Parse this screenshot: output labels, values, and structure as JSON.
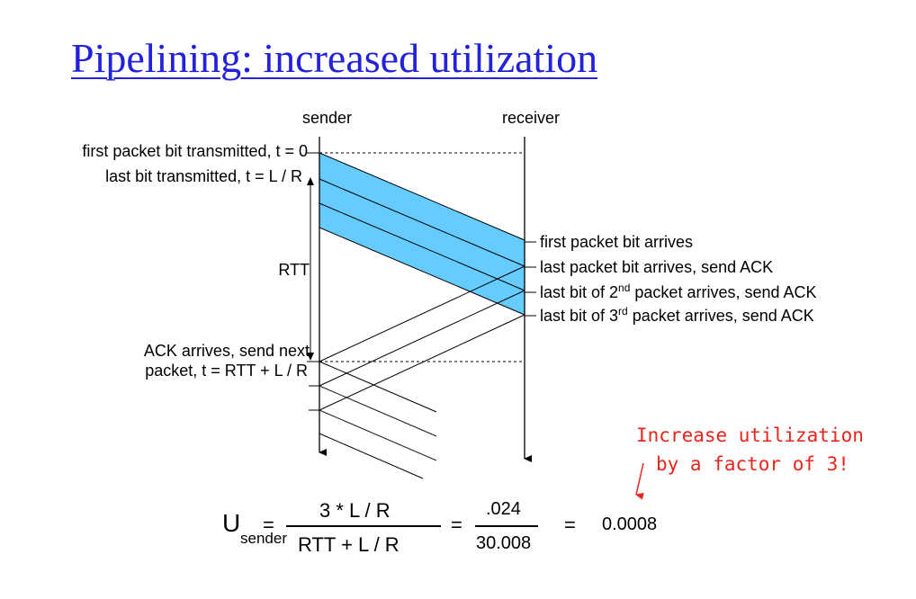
{
  "title": "Pipelining: increased utilization",
  "diagram": {
    "sender_label": "sender",
    "receiver_label": "receiver",
    "left_labels": {
      "first_bit": "first packet bit transmitted, t = 0",
      "last_bit": "last bit transmitted, t = L / R",
      "rtt": "RTT",
      "ack_line1": "ACK arrives, send next",
      "ack_line2": "packet, t = RTT + L / R"
    },
    "right_labels": {
      "first_arrives": "first packet bit arrives",
      "last_arrives": "last packet bit arrives, send ACK",
      "second_prefix": "last bit of 2",
      "second_sup": "nd",
      "second_suffix": " packet arrives, send ACK",
      "third_prefix": "last bit of 3",
      "third_sup": "rd",
      "third_suffix": " packet arrives, send ACK"
    },
    "band_color": "#66ccff",
    "line_color": "#000000"
  },
  "formula": {
    "symbol": "U",
    "subscript": "sender",
    "numerator": "3 * L / R",
    "denominator": "RTT + L / R",
    "value_numerator": ".024",
    "value_denominator": "30.008",
    "result": "0.0008"
  },
  "annotation": {
    "line1": "Increase utilization",
    "line2": "by a factor of 3!",
    "color": "#e8251c"
  }
}
